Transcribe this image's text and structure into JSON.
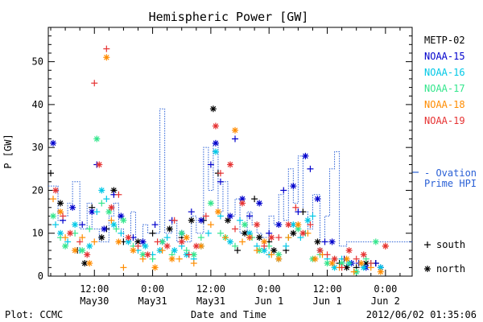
{
  "chart_data": {
    "type": "scatter",
    "title": "Hemispheric Power [GW]",
    "xlabel": "Date and Time",
    "ylabel": "P [GW]",
    "ylim": [
      0,
      58
    ],
    "xlim_hours_from_may29_0000": [
      2.5,
      77.5
    ],
    "grid": false,
    "legend_position": "right",
    "y_ticks": [
      0,
      10,
      20,
      30,
      40,
      50
    ],
    "x_ticks": [
      {
        "h": 12,
        "line1": "12:00",
        "line2": "May30"
      },
      {
        "h": 24,
        "line1": "0:00",
        "line2": "May31"
      },
      {
        "h": 36,
        "line1": "12:00",
        "line2": "May31"
      },
      {
        "h": 48,
        "line1": "0:00",
        "line2": "Jun 1"
      },
      {
        "h": 60,
        "line1": "12:00",
        "line2": "Jun 1"
      },
      {
        "h": 72,
        "line1": "0:00",
        "line2": "Jun 2"
      }
    ],
    "series": [
      {
        "name": "METP-02",
        "color": "#000000",
        "points": [
          [
            3.0,
            24
          ],
          [
            5,
            17
          ],
          [
            8.5,
            6
          ],
          [
            10,
            3
          ],
          [
            11.5,
            16
          ],
          [
            13.5,
            9
          ],
          [
            14.5,
            11
          ],
          [
            16,
            20
          ],
          [
            18,
            8
          ],
          [
            21,
            8
          ],
          [
            24,
            10
          ],
          [
            27.5,
            11
          ],
          [
            30,
            9
          ],
          [
            32,
            13
          ],
          [
            34.5,
            13
          ],
          [
            36.5,
            39
          ],
          [
            37.5,
            24
          ],
          [
            39.5,
            13
          ],
          [
            41.5,
            6
          ],
          [
            43,
            10
          ],
          [
            45,
            18
          ],
          [
            46,
            9
          ],
          [
            48,
            8
          ],
          [
            49,
            6
          ],
          [
            51.5,
            6
          ],
          [
            53,
            10
          ],
          [
            55,
            15
          ],
          [
            58,
            8
          ],
          [
            62.5,
            3
          ],
          [
            64,
            2
          ],
          [
            66,
            2
          ],
          [
            68,
            3
          ],
          [
            70,
            3
          ]
        ]
      },
      {
        "name": "NOAA-15",
        "color": "#0000cc",
        "points": [
          [
            3.5,
            31
          ],
          [
            5.5,
            13
          ],
          [
            7.5,
            16
          ],
          [
            9.5,
            12
          ],
          [
            11.5,
            15
          ],
          [
            12.5,
            26
          ],
          [
            14,
            11
          ],
          [
            16,
            19
          ],
          [
            17.5,
            14
          ],
          [
            20,
            9
          ],
          [
            22,
            8
          ],
          [
            24.5,
            12
          ],
          [
            26,
            8
          ],
          [
            28,
            13
          ],
          [
            30,
            10
          ],
          [
            32,
            15
          ],
          [
            34,
            13
          ],
          [
            36,
            26
          ],
          [
            37,
            31
          ],
          [
            38,
            22
          ],
          [
            40,
            14
          ],
          [
            41,
            32
          ],
          [
            42.5,
            18
          ],
          [
            44,
            14
          ],
          [
            46,
            17
          ],
          [
            48,
            10
          ],
          [
            50,
            12
          ],
          [
            51,
            20
          ],
          [
            53,
            21
          ],
          [
            54,
            15
          ],
          [
            55.5,
            28
          ],
          [
            56.5,
            25
          ],
          [
            58,
            18
          ],
          [
            59.5,
            8
          ],
          [
            61,
            8
          ],
          [
            63.5,
            4
          ],
          [
            65,
            3
          ],
          [
            66.5,
            3
          ],
          [
            68,
            2
          ],
          [
            70,
            3
          ],
          [
            71,
            2
          ]
        ]
      },
      {
        "name": "NOAA-16",
        "color": "#00c8e6",
        "points": [
          [
            4,
            12
          ],
          [
            5,
            10
          ],
          [
            6.5,
            8
          ],
          [
            8,
            12
          ],
          [
            9,
            6
          ],
          [
            11,
            7
          ],
          [
            12.5,
            15
          ],
          [
            13.5,
            20
          ],
          [
            14.5,
            18
          ],
          [
            16,
            12
          ],
          [
            17.5,
            10
          ],
          [
            19,
            8
          ],
          [
            21,
            6
          ],
          [
            22.5,
            7
          ],
          [
            24,
            5
          ],
          [
            25.5,
            6
          ],
          [
            27,
            9
          ],
          [
            28.5,
            6
          ],
          [
            30,
            7
          ],
          [
            31,
            5
          ],
          [
            32.5,
            4
          ],
          [
            34,
            7
          ],
          [
            35.5,
            10
          ],
          [
            37,
            29
          ],
          [
            38,
            14
          ],
          [
            40,
            8
          ],
          [
            42,
            13
          ],
          [
            44,
            10
          ],
          [
            45.5,
            7
          ],
          [
            47,
            6
          ],
          [
            48,
            5
          ],
          [
            50,
            4
          ],
          [
            51.5,
            7
          ],
          [
            53,
            12
          ],
          [
            54.5,
            9
          ],
          [
            56,
            13
          ],
          [
            57,
            14
          ],
          [
            58.5,
            6
          ],
          [
            60,
            4
          ],
          [
            61.5,
            2
          ],
          [
            63,
            4
          ],
          [
            64.5,
            3
          ],
          [
            66,
            1
          ],
          [
            67.5,
            2
          ],
          [
            69,
            3
          ],
          [
            71,
            2
          ]
        ]
      },
      {
        "name": "NOAA-17",
        "color": "#33e68c",
        "points": [
          [
            3.5,
            14
          ],
          [
            5,
            9
          ],
          [
            6,
            7
          ],
          [
            8,
            10
          ],
          [
            9.5,
            6
          ],
          [
            11,
            11
          ],
          [
            12.5,
            32
          ],
          [
            13.5,
            17
          ],
          [
            15,
            15
          ],
          [
            16.5,
            11
          ],
          [
            18,
            13
          ],
          [
            20,
            7
          ],
          [
            22,
            5
          ],
          [
            24,
            4
          ],
          [
            26,
            8
          ],
          [
            28,
            5
          ],
          [
            30,
            10
          ],
          [
            31,
            6
          ],
          [
            32.5,
            5
          ],
          [
            34,
            9
          ],
          [
            36,
            17
          ],
          [
            38,
            10
          ],
          [
            39,
            9
          ],
          [
            41,
            7
          ],
          [
            43,
            12
          ],
          [
            44.5,
            9
          ],
          [
            46,
            6
          ],
          [
            48,
            7
          ],
          [
            50,
            5
          ],
          [
            52,
            9
          ],
          [
            54,
            11
          ],
          [
            55.5,
            10
          ],
          [
            57,
            4
          ],
          [
            58.5,
            5
          ],
          [
            60,
            3
          ],
          [
            61.5,
            4
          ],
          [
            63,
            3
          ],
          [
            64.5,
            3
          ],
          [
            66,
            1
          ],
          [
            68,
            4
          ],
          [
            70,
            8
          ]
        ]
      },
      {
        "name": "NOAA-18",
        "color": "#ff8c00",
        "points": [
          [
            3.5,
            18
          ],
          [
            5,
            15
          ],
          [
            6,
            9
          ],
          [
            8,
            6
          ],
          [
            9.5,
            9
          ],
          [
            11,
            3
          ],
          [
            12,
            8
          ],
          [
            14.5,
            51
          ],
          [
            15.5,
            13
          ],
          [
            17,
            8
          ],
          [
            18,
            2
          ],
          [
            20,
            6
          ],
          [
            22,
            4
          ],
          [
            24.5,
            2
          ],
          [
            26,
            6
          ],
          [
            28,
            4
          ],
          [
            29.5,
            4
          ],
          [
            31,
            9
          ],
          [
            32.5,
            3
          ],
          [
            34,
            7
          ],
          [
            36,
            12
          ],
          [
            37.5,
            15
          ],
          [
            39,
            9
          ],
          [
            41,
            34
          ],
          [
            42.5,
            8
          ],
          [
            44,
            9
          ],
          [
            45.5,
            6
          ],
          [
            47,
            8
          ],
          [
            48.5,
            5
          ],
          [
            50,
            4
          ],
          [
            52,
            9
          ],
          [
            54,
            12
          ],
          [
            56,
            10
          ],
          [
            57.5,
            4
          ],
          [
            59,
            5
          ],
          [
            61,
            3
          ],
          [
            62.5,
            2
          ],
          [
            64,
            4
          ],
          [
            65.5,
            1
          ],
          [
            67,
            3
          ],
          [
            69,
            2
          ],
          [
            71,
            1
          ],
          [
            72,
            7
          ]
        ]
      },
      {
        "name": "NOAA-19",
        "color": "#e63232",
        "points": [
          [
            4,
            20
          ],
          [
            5.5,
            14
          ],
          [
            7,
            10
          ],
          [
            9,
            8
          ],
          [
            10.5,
            5
          ],
          [
            12,
            45
          ],
          [
            13,
            26
          ],
          [
            14.5,
            53
          ],
          [
            15.5,
            16
          ],
          [
            17,
            19
          ],
          [
            19,
            9
          ],
          [
            21,
            7
          ],
          [
            23,
            5
          ],
          [
            25,
            8
          ],
          [
            27,
            7
          ],
          [
            28.5,
            13
          ],
          [
            30,
            8
          ],
          [
            31.5,
            5
          ],
          [
            33,
            7
          ],
          [
            35,
            14
          ],
          [
            37,
            35
          ],
          [
            38,
            24
          ],
          [
            40,
            26
          ],
          [
            41,
            11
          ],
          [
            42.5,
            17
          ],
          [
            44,
            9
          ],
          [
            45.5,
            12
          ],
          [
            47,
            7
          ],
          [
            48.5,
            9
          ],
          [
            50,
            9
          ],
          [
            52,
            12
          ],
          [
            53.5,
            16
          ],
          [
            55,
            10
          ],
          [
            56.5,
            12
          ],
          [
            58.5,
            6
          ],
          [
            60,
            5
          ],
          [
            61.5,
            4
          ],
          [
            63,
            2
          ],
          [
            64.5,
            6
          ],
          [
            66,
            4
          ],
          [
            67.5,
            5
          ],
          [
            69,
            3
          ],
          [
            72,
            7
          ]
        ]
      }
    ],
    "ovation_prime_hpi": {
      "name": "- Ovation Prime HPI",
      "color": "#2a60d6",
      "steps": [
        [
          2.5,
          21
        ],
        [
          4.5,
          13
        ],
        [
          5.5,
          14
        ],
        [
          6.5,
          17
        ],
        [
          7.5,
          22
        ],
        [
          9,
          11
        ],
        [
          10.5,
          17
        ],
        [
          11.5,
          11
        ],
        [
          13,
          8
        ],
        [
          15,
          14
        ],
        [
          16,
          17
        ],
        [
          17,
          11
        ],
        [
          18,
          8
        ],
        [
          19.5,
          15
        ],
        [
          20.5,
          7
        ],
        [
          22,
          12
        ],
        [
          23,
          10
        ],
        [
          25.5,
          39
        ],
        [
          26.5,
          10
        ],
        [
          28,
          13
        ],
        [
          29,
          8
        ],
        [
          30,
          8
        ],
        [
          32,
          14
        ],
        [
          33,
          10
        ],
        [
          34.5,
          30
        ],
        [
          35.5,
          20
        ],
        [
          36.5,
          31
        ],
        [
          37.5,
          15
        ],
        [
          38.5,
          22
        ],
        [
          39.5,
          14
        ],
        [
          41,
          18
        ],
        [
          42,
          10
        ],
        [
          43.5,
          15
        ],
        [
          44.5,
          12
        ],
        [
          45.5,
          10
        ],
        [
          46.5,
          9
        ],
        [
          48,
          14
        ],
        [
          49,
          12
        ],
        [
          50,
          19
        ],
        [
          51,
          13
        ],
        [
          52,
          25
        ],
        [
          53,
          17
        ],
        [
          54,
          28
        ],
        [
          55,
          15
        ],
        [
          56,
          11
        ],
        [
          57,
          19
        ],
        [
          58.5,
          8
        ],
        [
          59.5,
          14
        ],
        [
          60.5,
          25
        ],
        [
          61.5,
          29
        ],
        [
          62.5,
          7
        ],
        [
          64,
          8
        ],
        [
          65,
          8
        ],
        [
          77.5,
          8
        ]
      ]
    },
    "legend_entries": [
      "METP-02",
      "NOAA-15",
      "NOAA-16",
      "NOAA-17",
      "NOAA-18",
      "NOAA-19"
    ],
    "marker_key": [
      {
        "glyph": "+",
        "label": "south"
      },
      {
        "glyph": "*",
        "label": "north"
      }
    ]
  },
  "legend": {
    "ovation_line1": "- Ovation",
    "ovation_line2": "Prime HPI"
  },
  "footer": {
    "plot_credit": "Plot: CCMC",
    "timestamp": "2012/06/02 01:35:06"
  }
}
